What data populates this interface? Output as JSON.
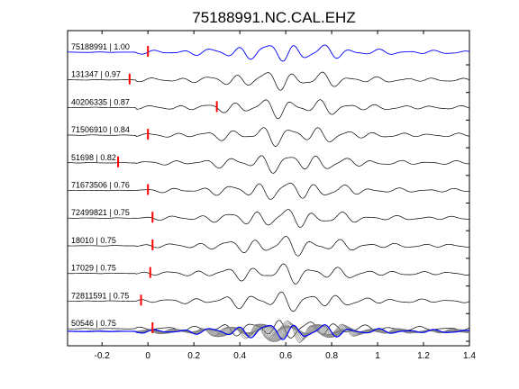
{
  "chart_data": {
    "type": "line",
    "title": "75188991.NC.CAL.EHZ",
    "xlabel": "",
    "ylabel": "",
    "xlim": [
      -0.35,
      1.4
    ],
    "xticks": [
      -0.2,
      0,
      0.2,
      0.4,
      0.6,
      0.8,
      1,
      1.2,
      1.4
    ],
    "xtick_labels": [
      "-0.2",
      "0",
      "0.2",
      "0.4",
      "0.6",
      "0.8",
      "1",
      "1.2",
      "1.4"
    ],
    "grid": false,
    "legend": "none",
    "colors": {
      "reference_trace": "#0000ff",
      "trace": "#000000",
      "pick_marker": "#ff0000",
      "stack_trace": "#808080",
      "stack_reference": "#0000ff"
    },
    "traces": [
      {
        "label": "75188991 | 1.00",
        "event_id": "75188991",
        "correlation": 1.0,
        "pick_time": 0.0,
        "reference": true
      },
      {
        "label": "131347 | 0.97",
        "event_id": "131347",
        "correlation": 0.97,
        "pick_time": -0.08
      },
      {
        "label": "40206335 | 0.87",
        "event_id": "40206335",
        "correlation": 0.87,
        "pick_time": 0.3
      },
      {
        "label": "71506910 | 0.84",
        "event_id": "71506910",
        "correlation": 0.84,
        "pick_time": 0.0
      },
      {
        "label": "51698 | 0.82",
        "event_id": "51698",
        "correlation": 0.82,
        "pick_time": -0.13
      },
      {
        "label": "71673506 | 0.76",
        "event_id": "71673506",
        "correlation": 0.76,
        "pick_time": 0.0
      },
      {
        "label": "72499821 | 0.75",
        "event_id": "72499821",
        "correlation": 0.75,
        "pick_time": 0.02
      },
      {
        "label": "18010 | 0.75",
        "event_id": "18010",
        "correlation": 0.75,
        "pick_time": 0.02
      },
      {
        "label": "17029 | 0.75",
        "event_id": "17029",
        "correlation": 0.75,
        "pick_time": 0.01
      },
      {
        "label": "72811591 | 0.75",
        "event_id": "72811591",
        "correlation": 0.75,
        "pick_time": -0.03
      },
      {
        "label": "50546 | 0.75",
        "event_id": "50546",
        "correlation": 0.75,
        "pick_time": 0.02
      }
    ],
    "stack": {
      "description": "overlay of all traces",
      "reference_color": "#0000ff"
    }
  }
}
